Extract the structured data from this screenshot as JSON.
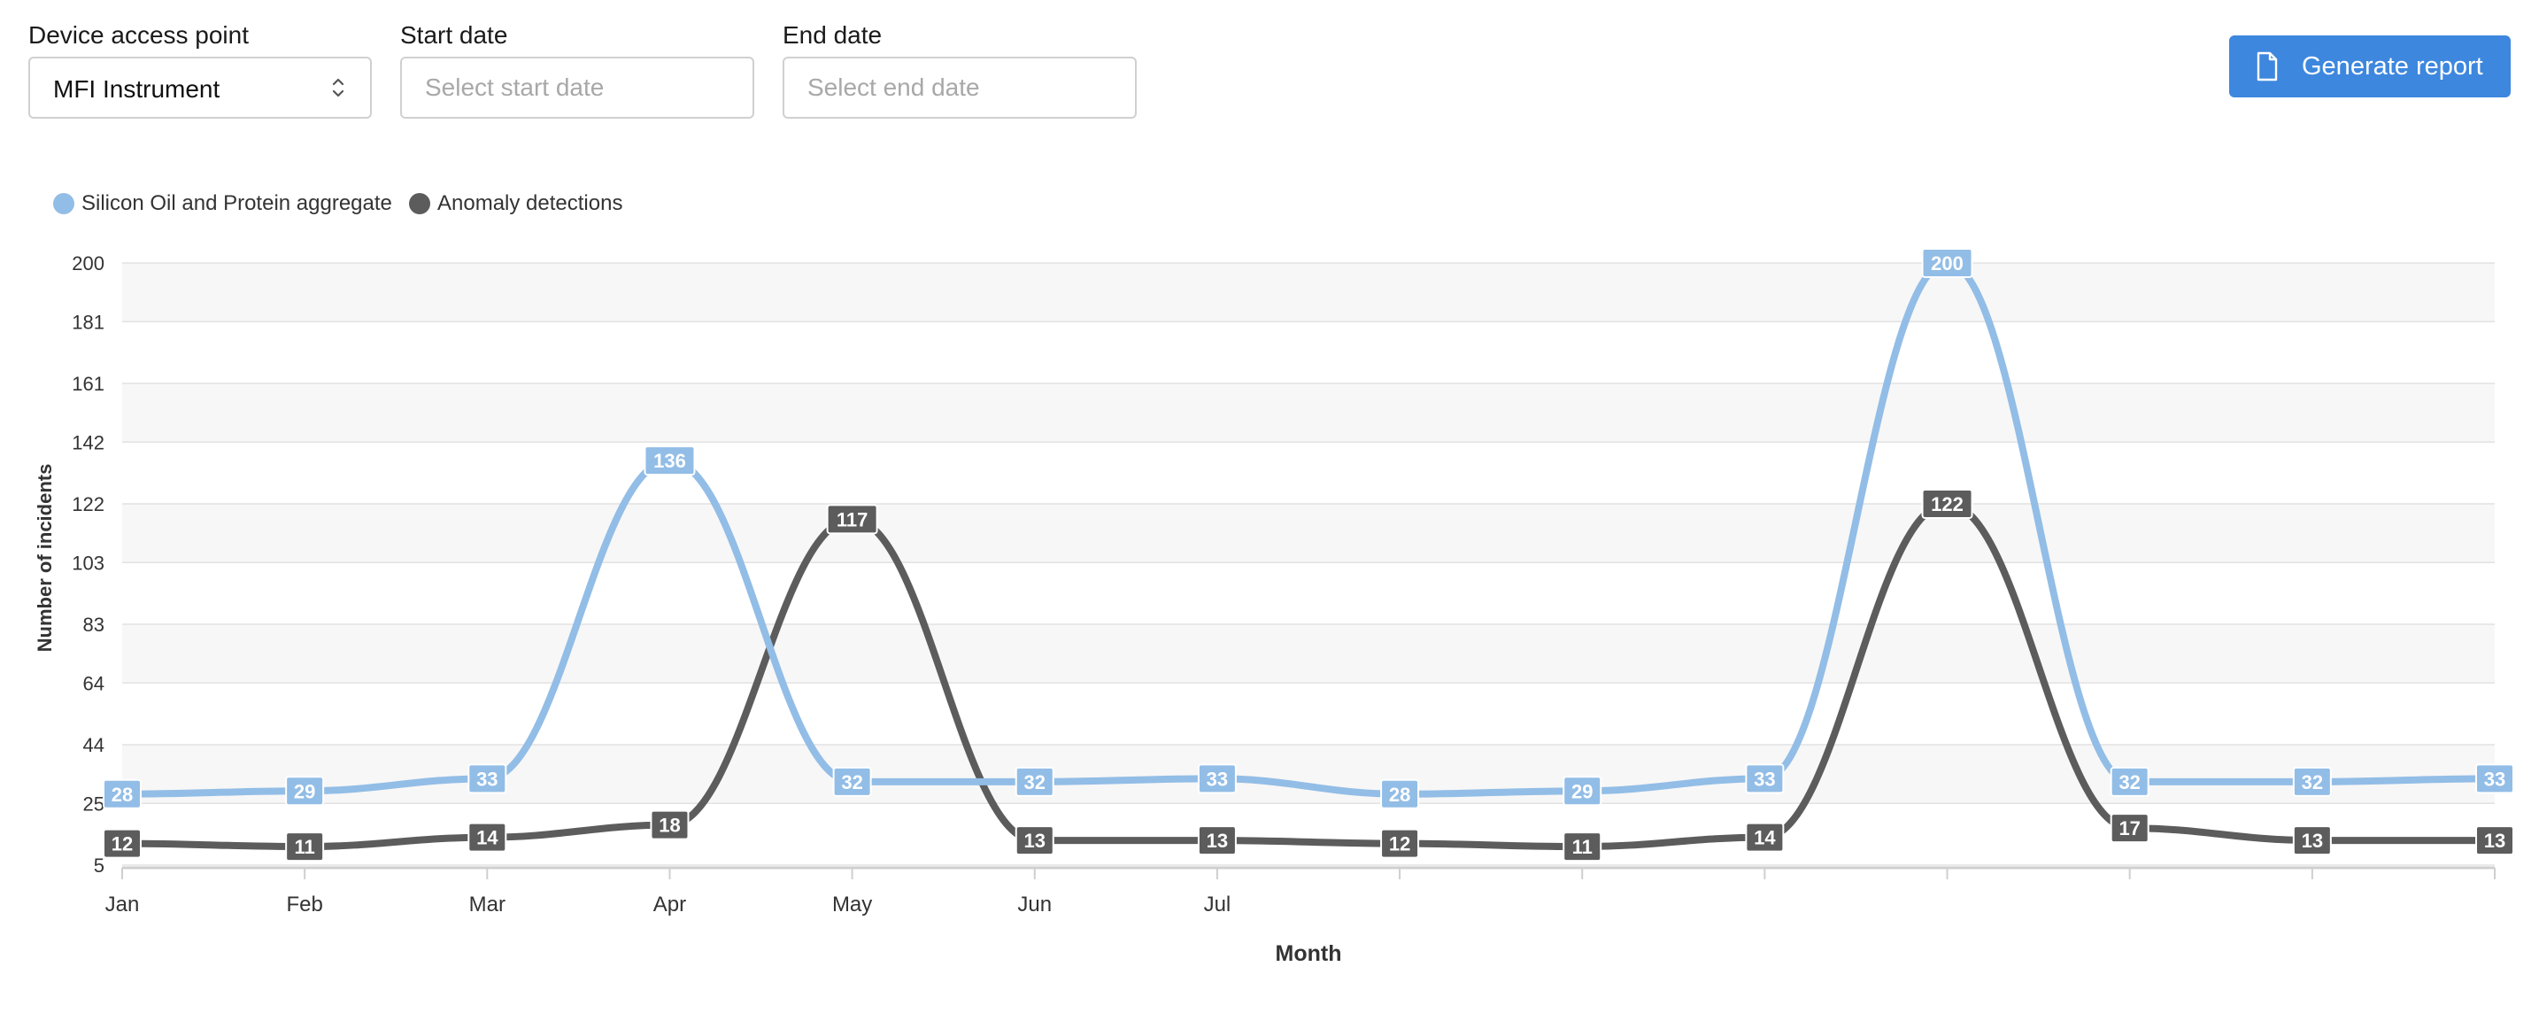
{
  "controls": {
    "device_label": "Device access point",
    "device_value": "MFI Instrument",
    "start_label": "Start date",
    "start_placeholder": "Select start date",
    "end_label": "End date",
    "end_placeholder": "Select end date",
    "report_button": "Generate report",
    "report_icon": "document-icon"
  },
  "colors": {
    "primary_button": "#3d87de",
    "series_silicon": "#92bde6",
    "series_anomaly": "#5c5c5c"
  },
  "chart_data": {
    "type": "line",
    "xlabel": "Month",
    "ylabel": "Number of incidents",
    "y_ticks": [
      "5",
      "25",
      "44",
      "64",
      "83",
      "103",
      "122",
      "142",
      "161",
      "181",
      "200"
    ],
    "ylim": [
      5,
      200
    ],
    "x_ticks": [
      "Jan",
      "Feb",
      "Mar",
      "Apr",
      "May",
      "Jun",
      "Jul",
      "",
      "",
      "",
      "",
      "",
      "",
      ""
    ],
    "legend_position": "top-left",
    "grid": "horizontal",
    "series": [
      {
        "name": "Silicon Oil and Protein aggregate",
        "color": "#92bde6",
        "values": [
          28,
          29,
          33,
          136,
          32,
          32,
          33,
          28,
          29,
          33,
          200,
          32,
          32,
          33
        ]
      },
      {
        "name": "Anomaly detections",
        "color": "#5c5c5c",
        "values": [
          12,
          11,
          14,
          18,
          117,
          13,
          13,
          12,
          11,
          14,
          122,
          17,
          13,
          13
        ]
      }
    ]
  }
}
